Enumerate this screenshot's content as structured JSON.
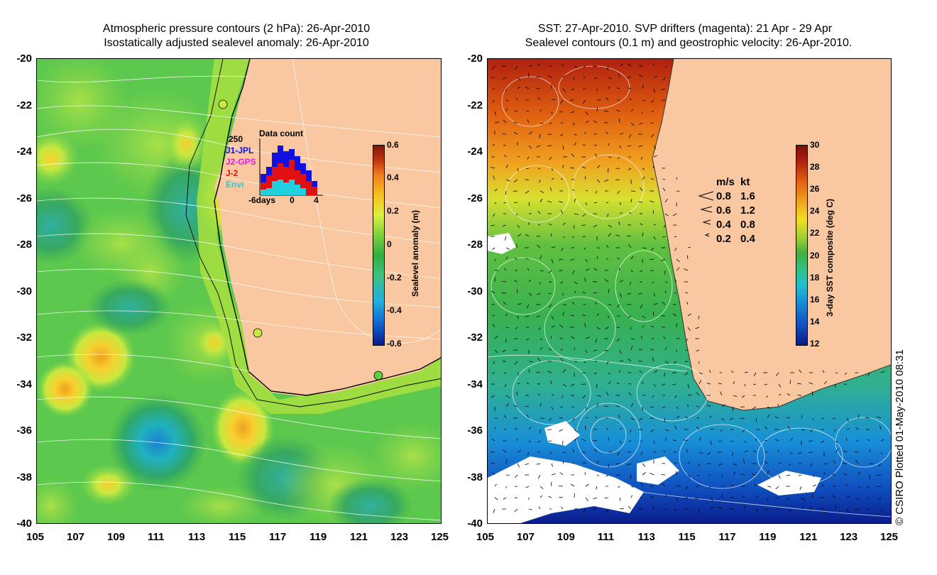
{
  "left_panel": {
    "title_line1": "Atmospheric pressure contours (2 hPa): 26-Apr-2010",
    "title_line2": "Isostatically adjusted sealevel anomaly: 26-Apr-2010",
    "colorbar": {
      "label": "Sealevel anomaly (m)",
      "ticks": [
        "0.6",
        "0.4",
        "0.2",
        "0",
        "-0.2",
        "-0.4",
        "-0.6"
      ],
      "colors": [
        "#0a1a8a",
        "#1060c8",
        "#20b0e0",
        "#40c080",
        "#30b040",
        "#7ed040",
        "#d8f040",
        "#f8c020",
        "#f08020",
        "#c03010",
        "#7a1a0a"
      ]
    },
    "inset": {
      "title": "Data count",
      "ymax": "250",
      "series": [
        {
          "name": "J1-JPL",
          "color": "#1010e0"
        },
        {
          "name": "J2-GPS",
          "color": "#e020e0"
        },
        {
          "name": "J-2",
          "color": "#e01010"
        },
        {
          "name": "Envi",
          "color": "#20d0e0"
        }
      ],
      "xticks": [
        "-6days",
        "0",
        "4"
      ]
    }
  },
  "right_panel": {
    "title_line1": "SST: 27-Apr-2010. SVP drifters (magenta): 21 Apr - 29 Apr",
    "title_line2": "Sealevel contours (0.1 m) and geostrophic velocity: 26-Apr-2010.",
    "colorbar": {
      "label": "3-day SST composite (deg C)",
      "ticks": [
        "30",
        "28",
        "26",
        "24",
        "22",
        "20",
        "18",
        "16",
        "14",
        "12"
      ],
      "colors": [
        "#0a1a8a",
        "#1050c0",
        "#1890d8",
        "#20c0d0",
        "#30c080",
        "#40b040",
        "#a0d030",
        "#f0e020",
        "#f0a020",
        "#e06010",
        "#b02010",
        "#7a1008"
      ]
    },
    "speed_legend": {
      "header_ms": "m/s",
      "header_kt": "kt",
      "rows": [
        {
          "ms": "0.8",
          "kt": "1.6"
        },
        {
          "ms": "0.6",
          "kt": "1.2"
        },
        {
          "ms": "0.4",
          "kt": "0.8"
        },
        {
          "ms": "0.2",
          "kt": "0.4"
        }
      ]
    }
  },
  "axes": {
    "lat_ticks": [
      "-20",
      "-22",
      "-24",
      "-26",
      "-28",
      "-30",
      "-32",
      "-34",
      "-36",
      "-38",
      "-40"
    ],
    "lon_ticks": [
      "105",
      "107",
      "109",
      "111",
      "113",
      "115",
      "117",
      "119",
      "121",
      "123",
      "125"
    ]
  },
  "copyright": "© CSIRO Plotted 01-May-2010 08:31",
  "colors": {
    "land": "#f9c8a0",
    "ocean_green": "#58c850"
  }
}
